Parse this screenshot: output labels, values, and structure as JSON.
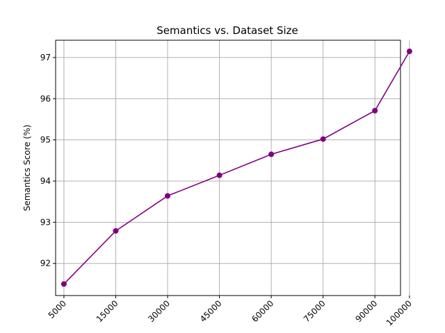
{
  "chart_data": {
    "type": "line",
    "title": "Semantics vs. Dataset Size",
    "xlabel": "",
    "ylabel": "Semantics Score (%)",
    "x": [
      5000,
      15000,
      30000,
      45000,
      60000,
      75000,
      90000,
      100000
    ],
    "x_tick_labels": [
      "5000",
      "15000",
      "30000",
      "45000",
      "60000",
      "75000",
      "90000",
      "100000"
    ],
    "series": [
      {
        "values": [
          91.5,
          92.79,
          93.64,
          94.14,
          94.65,
          95.02,
          95.71,
          97.15
        ]
      }
    ],
    "yticks": [
      92,
      93,
      94,
      95,
      96,
      97
    ],
    "ylim": [
      91.22,
      97.42
    ],
    "xlim": [
      -0.24,
      9.74
    ],
    "grid": true,
    "line_color": "#800080",
    "marker": "circle"
  }
}
